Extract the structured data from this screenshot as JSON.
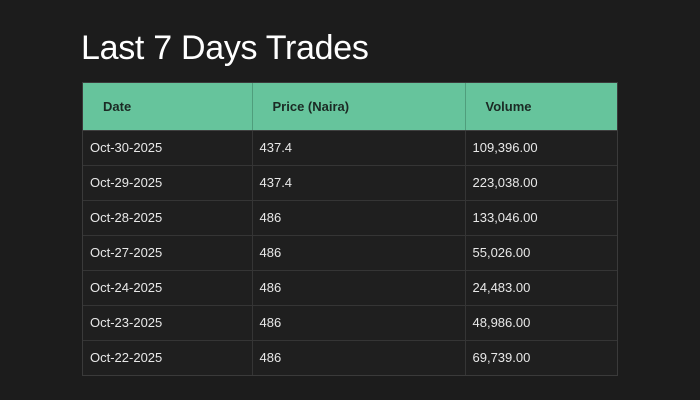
{
  "page": {
    "title": "Last 7 Days Trades"
  },
  "table": {
    "headers": {
      "date": "Date",
      "price": "Price (Naira)",
      "volume": "Volume"
    },
    "rows": [
      {
        "date": "Oct-30-2025",
        "price": "437.4",
        "volume": "109,396.00"
      },
      {
        "date": "Oct-29-2025",
        "price": "437.4",
        "volume": "223,038.00"
      },
      {
        "date": "Oct-28-2025",
        "price": "486",
        "volume": "133,046.00"
      },
      {
        "date": "Oct-27-2025",
        "price": "486",
        "volume": "55,026.00"
      },
      {
        "date": "Oct-24-2025",
        "price": "486",
        "volume": "24,483.00"
      },
      {
        "date": "Oct-23-2025",
        "price": "486",
        "volume": "48,986.00"
      },
      {
        "date": "Oct-22-2025",
        "price": "486",
        "volume": "69,739.00"
      }
    ]
  },
  "colors": {
    "background": "#1c1c1c",
    "header_accent": "#66c49c",
    "text": "#e8e8e8"
  }
}
